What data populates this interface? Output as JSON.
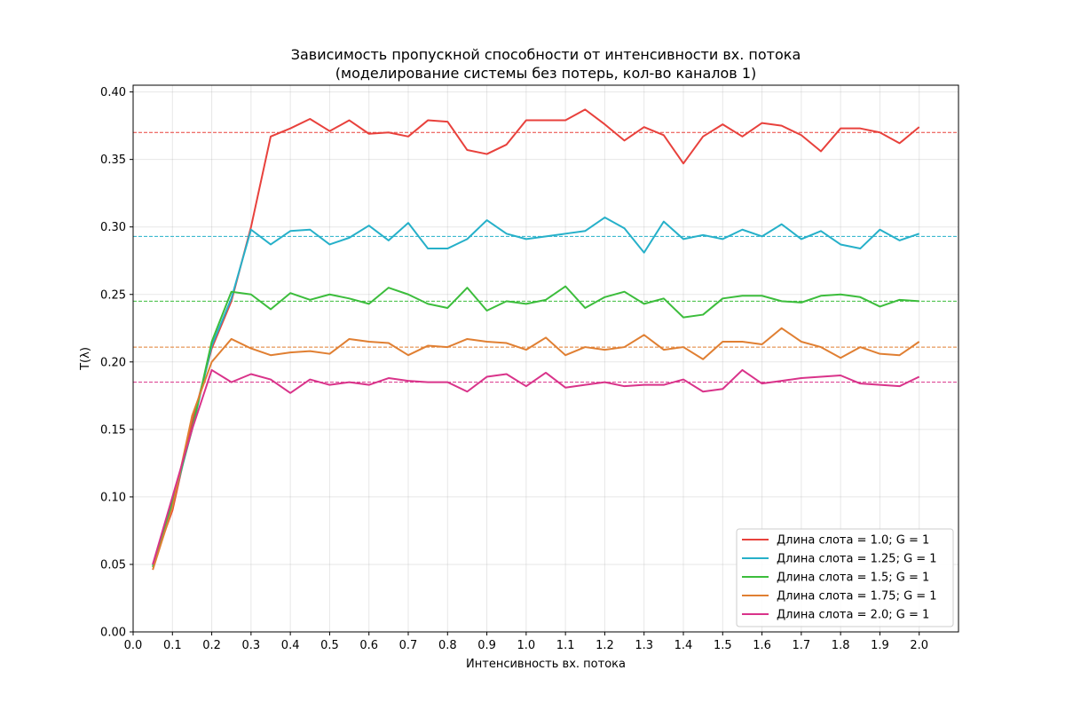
{
  "chart_data": {
    "type": "line",
    "title": "Зависимость пропускной способности от интенсивности вх. потока",
    "subtitle": "(моделирование системы без потерь, кол-во каналов 1)",
    "xlabel": "Интенсивность вх. потока",
    "ylabel": "T(λ)",
    "xlim": [
      0.0,
      2.1
    ],
    "ylim": [
      0.0,
      0.405
    ],
    "xticks": [
      "0.0",
      "0.1",
      "0.2",
      "0.3",
      "0.4",
      "0.5",
      "0.6",
      "0.7",
      "0.8",
      "0.9",
      "1.0",
      "1.1",
      "1.2",
      "1.3",
      "1.4",
      "1.5",
      "1.6",
      "1.7",
      "1.8",
      "1.9",
      "2.0"
    ],
    "yticks": [
      "0.00",
      "0.05",
      "0.10",
      "0.15",
      "0.20",
      "0.25",
      "0.30",
      "0.35",
      "0.40"
    ],
    "grid": true,
    "legend_position": "lower-right",
    "x": [
      0.05,
      0.1,
      0.15,
      0.2,
      0.25,
      0.3,
      0.35,
      0.4,
      0.45,
      0.5,
      0.55,
      0.6,
      0.65,
      0.7,
      0.75,
      0.8,
      0.85,
      0.9,
      0.95,
      1.0,
      1.05,
      1.1,
      1.15,
      1.2,
      1.25,
      1.3,
      1.35,
      1.4,
      1.45,
      1.5,
      1.55,
      1.6,
      1.65,
      1.7,
      1.75,
      1.8,
      1.85,
      1.9,
      1.95,
      2.0
    ],
    "series": [
      {
        "name": "Длина слота = 1.0; G = 1",
        "color": "#e8413c",
        "mean": 0.37,
        "values": [
          0.05,
          0.09,
          0.155,
          0.21,
          0.245,
          0.3,
          0.367,
          0.373,
          0.38,
          0.371,
          0.379,
          0.369,
          0.37,
          0.367,
          0.379,
          0.378,
          0.357,
          0.354,
          0.361,
          0.379,
          0.379,
          0.379,
          0.387,
          0.376,
          0.364,
          0.374,
          0.368,
          0.347,
          0.367,
          0.376,
          0.367,
          0.377,
          0.375,
          0.368,
          0.356,
          0.373,
          0.373,
          0.37,
          0.362,
          0.374
        ]
      },
      {
        "name": "Длина слота = 1.25; G = 1",
        "color": "#26b0c9",
        "mean": 0.293,
        "values": [
          0.049,
          0.095,
          0.15,
          0.212,
          0.247,
          0.298,
          0.287,
          0.297,
          0.298,
          0.287,
          0.292,
          0.301,
          0.29,
          0.303,
          0.284,
          0.284,
          0.291,
          0.305,
          0.295,
          0.291,
          0.293,
          0.295,
          0.297,
          0.307,
          0.299,
          0.281,
          0.304,
          0.291,
          0.294,
          0.291,
          0.298,
          0.293,
          0.302,
          0.291,
          0.297,
          0.287,
          0.284,
          0.298,
          0.29,
          0.295
        ]
      },
      {
        "name": "Длина слота = 1.5; G = 1",
        "color": "#3cbd3c",
        "mean": 0.245,
        "values": [
          0.048,
          0.097,
          0.15,
          0.215,
          0.252,
          0.25,
          0.239,
          0.251,
          0.246,
          0.25,
          0.247,
          0.243,
          0.255,
          0.25,
          0.243,
          0.24,
          0.255,
          0.238,
          0.245,
          0.243,
          0.246,
          0.256,
          0.24,
          0.248,
          0.252,
          0.243,
          0.247,
          0.233,
          0.235,
          0.247,
          0.249,
          0.249,
          0.245,
          0.244,
          0.249,
          0.25,
          0.248,
          0.241,
          0.246,
          0.245
        ]
      },
      {
        "name": "Длина слота = 1.75; G = 1",
        "color": "#e07f32",
        "mean": 0.211,
        "values": [
          0.046,
          0.092,
          0.16,
          0.2,
          0.217,
          0.21,
          0.205,
          0.207,
          0.208,
          0.206,
          0.217,
          0.215,
          0.214,
          0.205,
          0.212,
          0.211,
          0.217,
          0.215,
          0.214,
          0.209,
          0.218,
          0.205,
          0.211,
          0.209,
          0.211,
          0.22,
          0.209,
          0.211,
          0.202,
          0.215,
          0.215,
          0.213,
          0.225,
          0.215,
          0.211,
          0.203,
          0.211,
          0.206,
          0.205,
          0.215
        ]
      },
      {
        "name": "Длина слота = 2.0; G = 1",
        "color": "#d9338a",
        "mean": 0.185,
        "values": [
          0.05,
          0.1,
          0.15,
          0.194,
          0.185,
          0.191,
          0.187,
          0.177,
          0.187,
          0.183,
          0.185,
          0.183,
          0.188,
          0.186,
          0.185,
          0.185,
          0.178,
          0.189,
          0.191,
          0.182,
          0.192,
          0.181,
          0.183,
          0.185,
          0.182,
          0.183,
          0.183,
          0.187,
          0.178,
          0.18,
          0.194,
          0.184,
          0.186,
          0.188,
          0.189,
          0.19,
          0.184,
          0.183,
          0.182,
          0.189
        ]
      }
    ]
  }
}
